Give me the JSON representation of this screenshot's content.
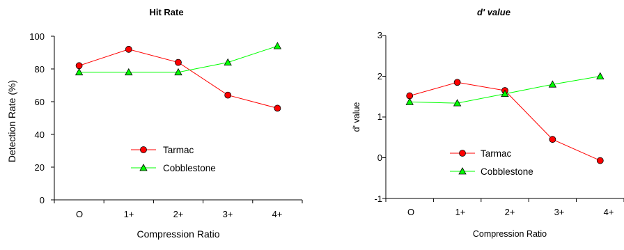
{
  "chart_data": [
    {
      "type": "line",
      "title": "Hit Rate",
      "xlabel": "Compression Ratio",
      "ylabel": "Detection Rate (%)",
      "categories": [
        "O",
        "1+",
        "2+",
        "3+",
        "4+"
      ],
      "ylim": [
        0,
        100
      ],
      "yticks": [
        "0",
        "20",
        "40",
        "60",
        "80",
        "100"
      ],
      "grid": false,
      "legend": "lower-center",
      "series": [
        {
          "name": "Tarmac",
          "color": "#ff0000",
          "marker": "circle",
          "values": [
            82,
            92,
            84,
            64,
            56
          ]
        },
        {
          "name": "Cobblestone",
          "color": "#00ff00",
          "marker": "triangle",
          "values": [
            78,
            78,
            78,
            84,
            94
          ]
        }
      ]
    },
    {
      "type": "line",
      "title": "d' value",
      "xlabel": "Compression Ratio",
      "ylabel": "d' value",
      "categories": [
        "O",
        "1+",
        "2+",
        "3+",
        "4+"
      ],
      "ylim": [
        -1,
        3
      ],
      "yticks": [
        "-1",
        "0",
        "1",
        "2",
        "3"
      ],
      "grid": false,
      "legend": "lower-center",
      "series": [
        {
          "name": "Tarmac",
          "color": "#ff0000",
          "marker": "circle",
          "values": [
            1.52,
            1.85,
            1.65,
            0.45,
            -0.07
          ]
        },
        {
          "name": "Cobblestone",
          "color": "#00ff00",
          "marker": "triangle",
          "values": [
            1.37,
            1.34,
            1.57,
            1.8,
            2.0
          ]
        }
      ]
    }
  ]
}
